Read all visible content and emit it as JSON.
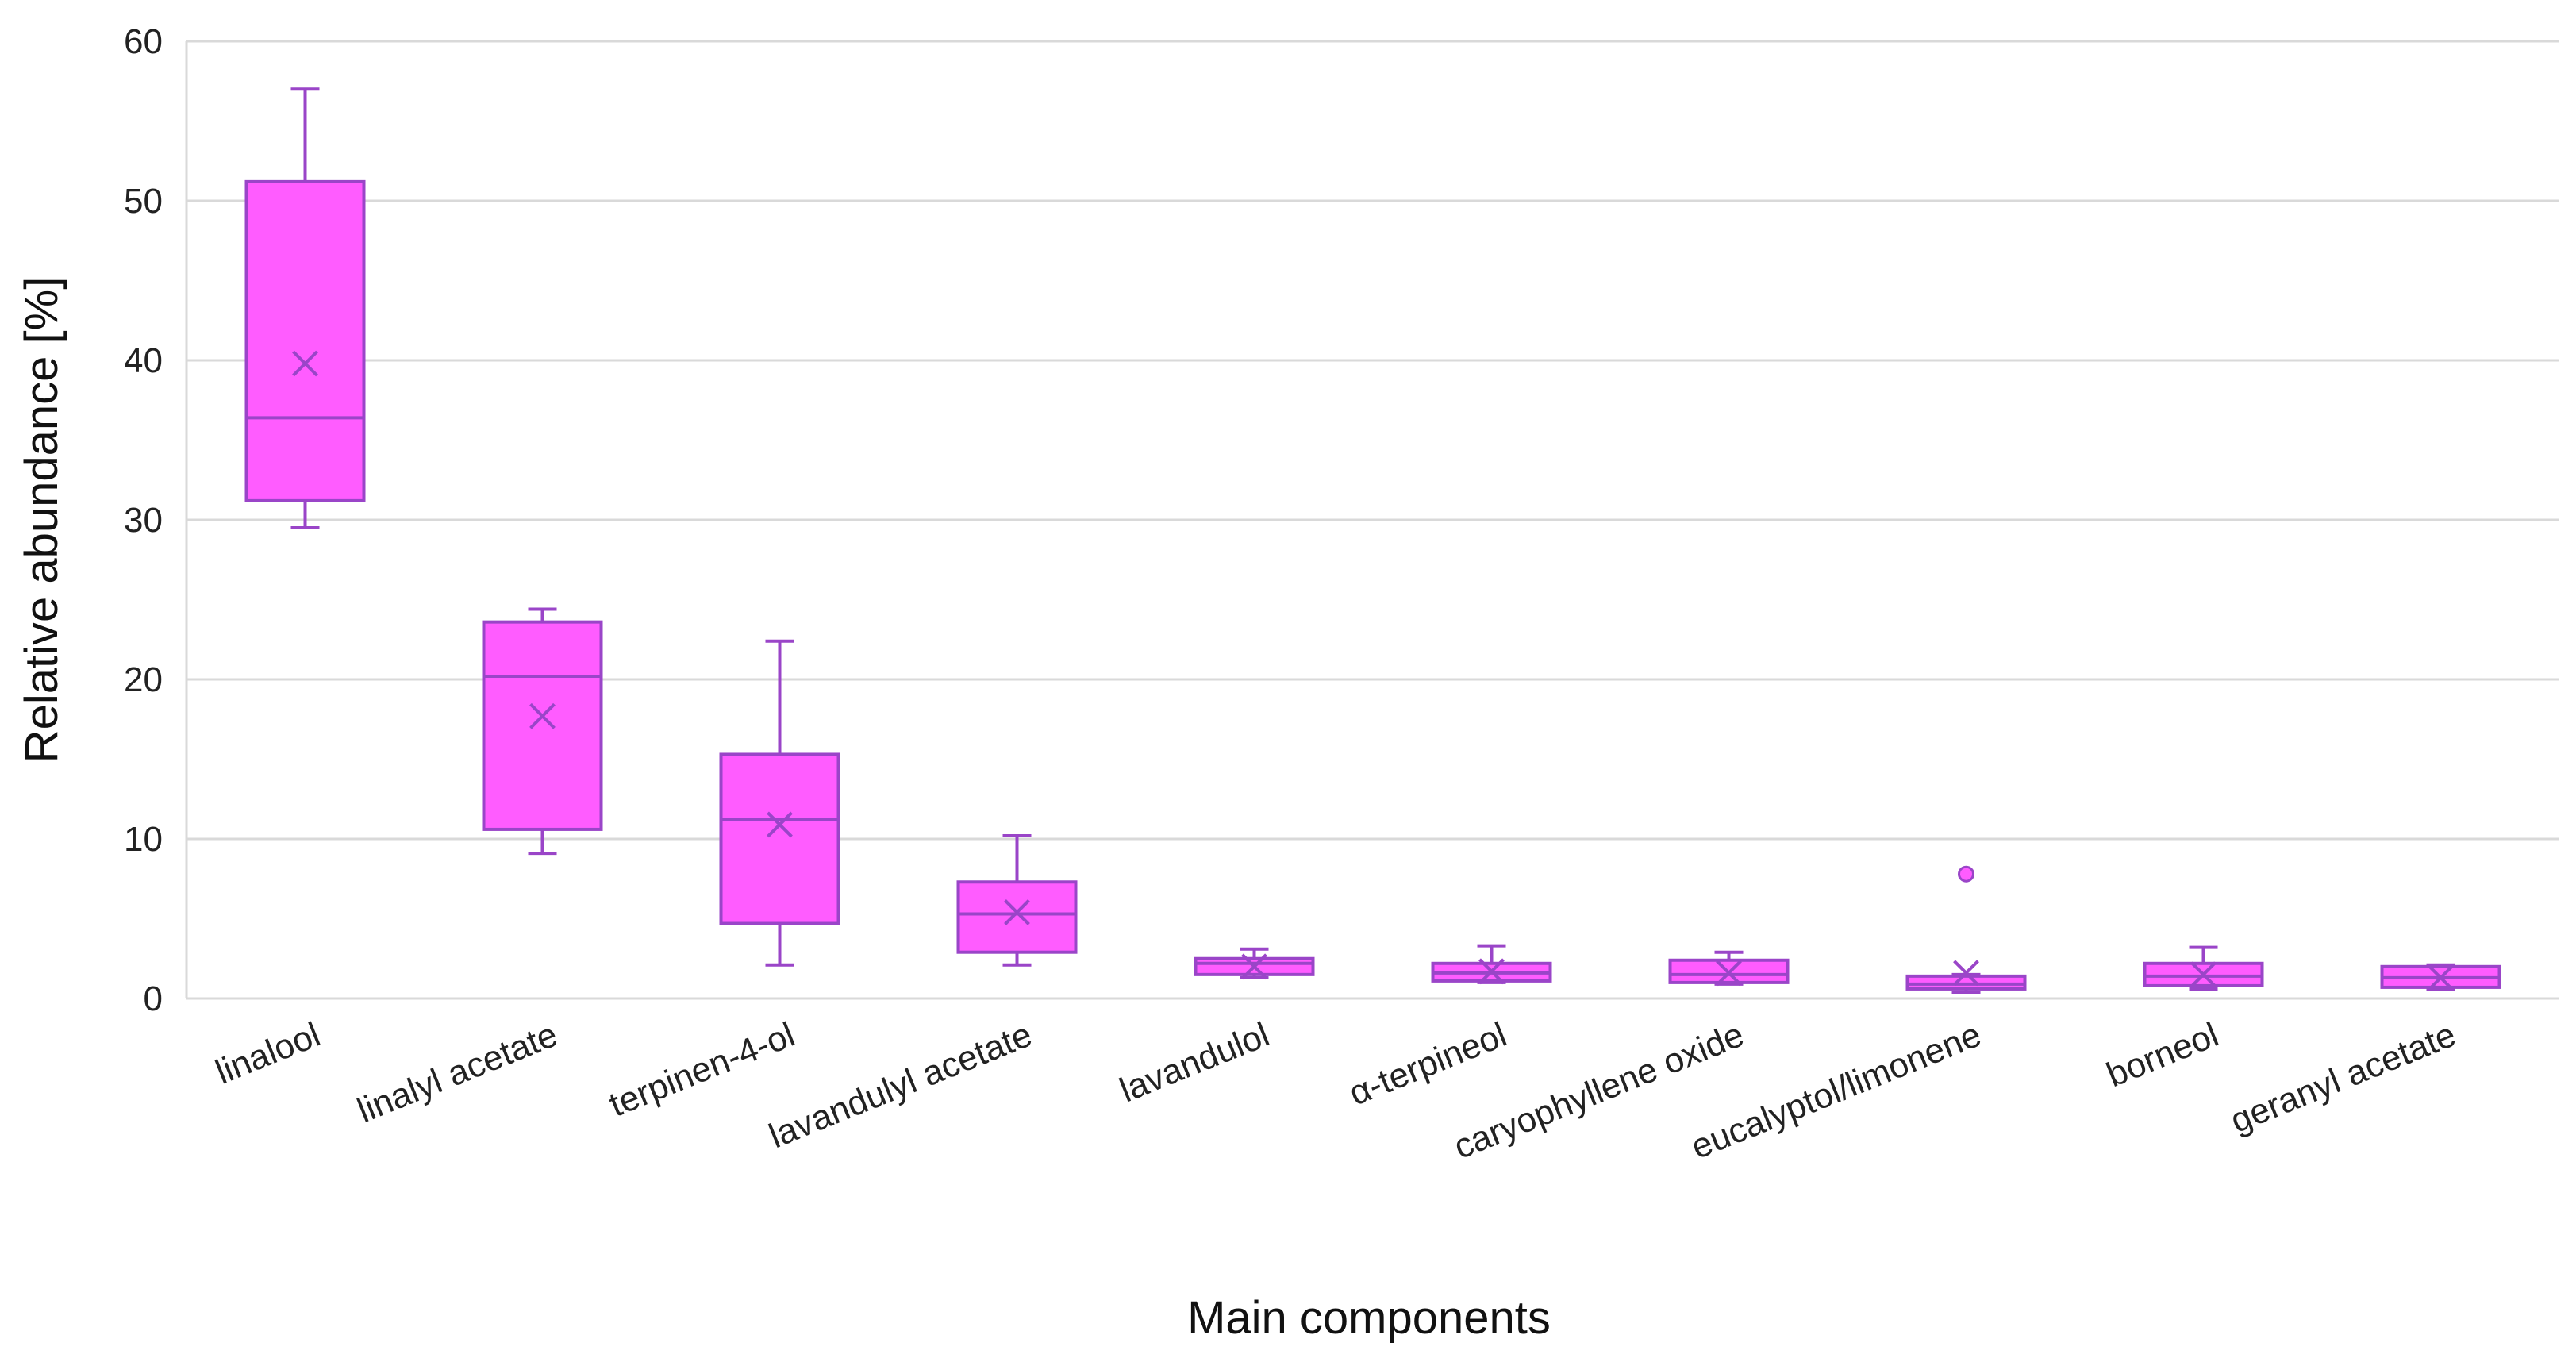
{
  "chart_data": {
    "type": "box",
    "title": "",
    "xlabel": "Main components",
    "ylabel": "Relative abundance [%]",
    "ylim": [
      0,
      60
    ],
    "yticks": [
      "0",
      "10",
      "20",
      "30",
      "40",
      "50",
      "60"
    ],
    "grid": true,
    "legend": "none",
    "colors": {
      "fill": "#ff5cff",
      "stroke": "#9a45c8",
      "grid": "#d9d9d9"
    },
    "categories": [
      "linalool",
      "linalyl acetate",
      "terpinen-4-ol",
      "lavandulyl acetate",
      "lavandulol",
      "α-terpineol",
      "caryophyllene oxide",
      "eucalyptol/limonene",
      "borneol",
      "geranyl acetate"
    ],
    "boxes": [
      {
        "min": 29.5,
        "q1": 31.2,
        "median": 36.4,
        "q3": 51.2,
        "max": 57.0,
        "mean": 39.8,
        "outliers": []
      },
      {
        "min": 9.1,
        "q1": 10.6,
        "median": 20.2,
        "q3": 23.6,
        "max": 24.4,
        "mean": 17.7,
        "outliers": []
      },
      {
        "min": 2.1,
        "q1": 4.7,
        "median": 11.2,
        "q3": 15.3,
        "max": 22.4,
        "mean": 10.9,
        "outliers": []
      },
      {
        "min": 2.1,
        "q1": 2.9,
        "median": 5.3,
        "q3": 7.3,
        "max": 10.2,
        "mean": 5.4,
        "outliers": []
      },
      {
        "min": 1.3,
        "q1": 1.5,
        "median": 2.2,
        "q3": 2.5,
        "max": 3.1,
        "mean": 2.0,
        "outliers": []
      },
      {
        "min": 1.0,
        "q1": 1.1,
        "median": 1.6,
        "q3": 2.2,
        "max": 3.3,
        "mean": 1.7,
        "outliers": []
      },
      {
        "min": 0.9,
        "q1": 1.0,
        "median": 1.5,
        "q3": 2.4,
        "max": 2.9,
        "mean": 1.6,
        "outliers": []
      },
      {
        "min": 0.4,
        "q1": 0.6,
        "median": 0.9,
        "q3": 1.4,
        "max": 1.5,
        "mean": 1.6,
        "outliers": [
          7.8
        ]
      },
      {
        "min": 0.6,
        "q1": 0.8,
        "median": 1.4,
        "q3": 2.2,
        "max": 3.2,
        "mean": 1.5,
        "outliers": []
      },
      {
        "min": 0.6,
        "q1": 0.7,
        "median": 1.3,
        "q3": 2.0,
        "max": 2.1,
        "mean": 1.3,
        "outliers": []
      }
    ]
  }
}
